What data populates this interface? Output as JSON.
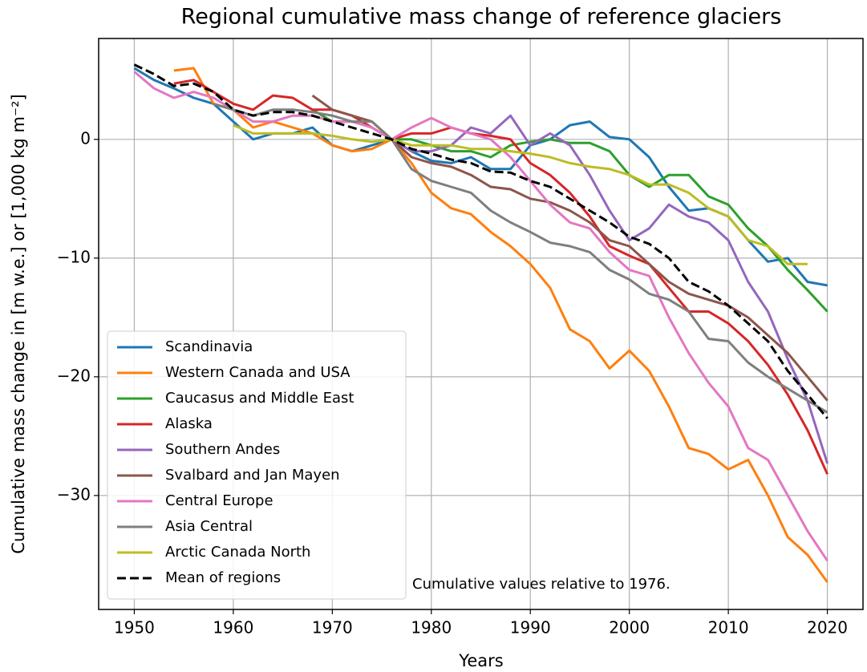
{
  "chart_data": {
    "type": "line",
    "title": "Regional cumulative mass change of reference glaciers",
    "x_label": "Years",
    "y_label": "Cumulative mass change in [m w.e.] or [1,000 kg m⁻²]",
    "annotation": "Cumulative values relative to 1976.",
    "x": [
      1950,
      1952,
      1954,
      1956,
      1958,
      1960,
      1962,
      1964,
      1966,
      1968,
      1970,
      1972,
      1974,
      1976,
      1978,
      1980,
      1982,
      1984,
      1986,
      1988,
      1990,
      1992,
      1994,
      1996,
      1998,
      2000,
      2002,
      2004,
      2006,
      2008,
      2010,
      2012,
      2014,
      2016,
      2018,
      2020
    ],
    "series": [
      {
        "name": "Scandinavia",
        "color": "#1f77b4",
        "values": [
          6,
          5,
          4.3,
          3.5,
          3,
          1.5,
          0,
          0.5,
          0.5,
          1,
          -0.5,
          -1,
          -0.5,
          0,
          -1,
          -1.8,
          -2,
          -1.5,
          -2.5,
          -2.5,
          -0.5,
          0,
          1.2,
          1.5,
          0.2,
          0,
          -1.5,
          -4,
          -6,
          -5.8,
          -6.5,
          -8.5,
          -10.3,
          -10,
          -12,
          -12.3
        ]
      },
      {
        "name": "Western Canada and USA",
        "color": "#ff7f0e",
        "values": [
          null,
          null,
          5.8,
          6,
          3,
          2.5,
          1,
          1.5,
          1,
          0.5,
          -0.5,
          -1,
          -0.8,
          0,
          -2,
          -4.5,
          -5.8,
          -6.3,
          -7.8,
          -9,
          -10.5,
          -12.5,
          -16,
          -17,
          -19.3,
          -17.8,
          -19.5,
          -22.5,
          -26,
          -26.5,
          -27.8,
          -27,
          -30,
          -33.5,
          -35,
          -37.3
        ]
      },
      {
        "name": "Caucasus and Middle East",
        "color": "#2ca02c",
        "values": [
          null,
          null,
          null,
          null,
          null,
          null,
          null,
          null,
          null,
          2.5,
          1.5,
          1.5,
          1,
          0,
          0,
          -0.5,
          -1,
          -1,
          -1.5,
          -0.5,
          -0.2,
          0,
          -0.3,
          -0.3,
          -1,
          -3,
          -4,
          -3,
          -3,
          -4.8,
          -5.5,
          -7.5,
          -9,
          -11,
          -12.7,
          -14.5
        ]
      },
      {
        "name": "Alaska",
        "color": "#d62728",
        "values": [
          null,
          null,
          4.7,
          5,
          4,
          3,
          2.5,
          3.7,
          3.5,
          2.5,
          2.5,
          2,
          1,
          0,
          0.5,
          0.5,
          1,
          0.5,
          0.3,
          0,
          -2,
          -3,
          -4.5,
          -6.5,
          -9,
          -9.8,
          -10.5,
          -12.5,
          -14.5,
          -14.5,
          -15.5,
          -17,
          -19,
          -21.5,
          -24.5,
          -28.2
        ]
      },
      {
        "name": "Southern Andes",
        "color": "#9467bd",
        "values": [
          null,
          null,
          null,
          null,
          null,
          null,
          null,
          null,
          null,
          null,
          null,
          null,
          null,
          0,
          -1,
          -1,
          -0.5,
          1,
          0.5,
          2,
          -0.5,
          0.5,
          -0.5,
          -3,
          -6,
          -8.5,
          -7.5,
          -5.5,
          -6.5,
          -7,
          -8.5,
          -12,
          -14.5,
          -18.5,
          -22,
          -27.3
        ]
      },
      {
        "name": "Svalbard and Jan Mayen",
        "color": "#8c564b",
        "values": [
          null,
          null,
          null,
          null,
          null,
          null,
          null,
          null,
          null,
          3.7,
          2.5,
          2,
          1.5,
          0,
          -1.5,
          -2,
          -2.3,
          -3,
          -4,
          -4.2,
          -5,
          -5.3,
          -6,
          -7,
          -8.5,
          -9,
          -10.5,
          -12,
          -13,
          -13.5,
          -14,
          -15,
          -16.5,
          -18,
          -20,
          -22
        ]
      },
      {
        "name": "Central Europe",
        "color": "#e377c2",
        "values": [
          5.7,
          4.3,
          3.5,
          4,
          3.5,
          2.5,
          1.5,
          1.5,
          2,
          2,
          1.5,
          1.5,
          1,
          0,
          1,
          1.8,
          1,
          0.5,
          0,
          -1.5,
          -3.5,
          -5.5,
          -7,
          -7.5,
          -9.5,
          -11,
          -11.5,
          -15,
          -18,
          -20.5,
          -22.5,
          -26,
          -27,
          -30,
          -33,
          -35.5
        ]
      },
      {
        "name": "Asia Central",
        "color": "#7f7f7f",
        "values": [
          null,
          null,
          null,
          null,
          3,
          2.5,
          2,
          2.5,
          2.5,
          2.3,
          2,
          1.5,
          1.5,
          0,
          -2.5,
          -3.5,
          -4,
          -4.5,
          -6,
          -7,
          -7.8,
          -8.7,
          -9,
          -9.5,
          -11,
          -11.8,
          -13,
          -13.5,
          -14.5,
          -16.8,
          -17,
          -18.8,
          -20,
          -21,
          -22,
          -23
        ]
      },
      {
        "name": "Arctic Canada North",
        "color": "#bcbd22",
        "values": [
          null,
          null,
          null,
          null,
          null,
          1.2,
          0.5,
          0.5,
          0.5,
          0.5,
          0.3,
          0,
          -0.2,
          0,
          -0.5,
          -0.5,
          -0.5,
          -0.8,
          -0.8,
          -1,
          -1.2,
          -1.5,
          -2,
          -2.3,
          -2.5,
          -3,
          -3.8,
          -3.8,
          -4.5,
          -5.8,
          -6.5,
          -8.5,
          -9,
          -10.5,
          -10.5,
          null
        ]
      },
      {
        "name": "Mean of regions",
        "color": "#000000",
        "linestyle": "dashed",
        "values": [
          6.3,
          5.5,
          4.5,
          4.7,
          4,
          2.5,
          2,
          2.3,
          2.3,
          2,
          1.5,
          1,
          0.5,
          0,
          -0.8,
          -1.2,
          -1.7,
          -2,
          -2.7,
          -2.8,
          -3.5,
          -4,
          -5,
          -6,
          -7,
          -8.2,
          -8.8,
          -10,
          -12,
          -12.8,
          -14,
          -15.5,
          -17,
          -19.5,
          -21.5,
          -23.5
        ]
      }
    ],
    "xlim": [
      1946.4,
      2023.6
    ],
    "ylim": [
      -39.6,
      8.5
    ],
    "xticks": [
      1950,
      1960,
      1970,
      1980,
      1990,
      2000,
      2010,
      2020
    ],
    "yticks": [
      {
        "value": -30,
        "label": "−30"
      },
      {
        "value": -20,
        "label": "−20"
      },
      {
        "value": -10,
        "label": "−10"
      },
      0
    ],
    "grid": true,
    "legend": "lower left"
  }
}
